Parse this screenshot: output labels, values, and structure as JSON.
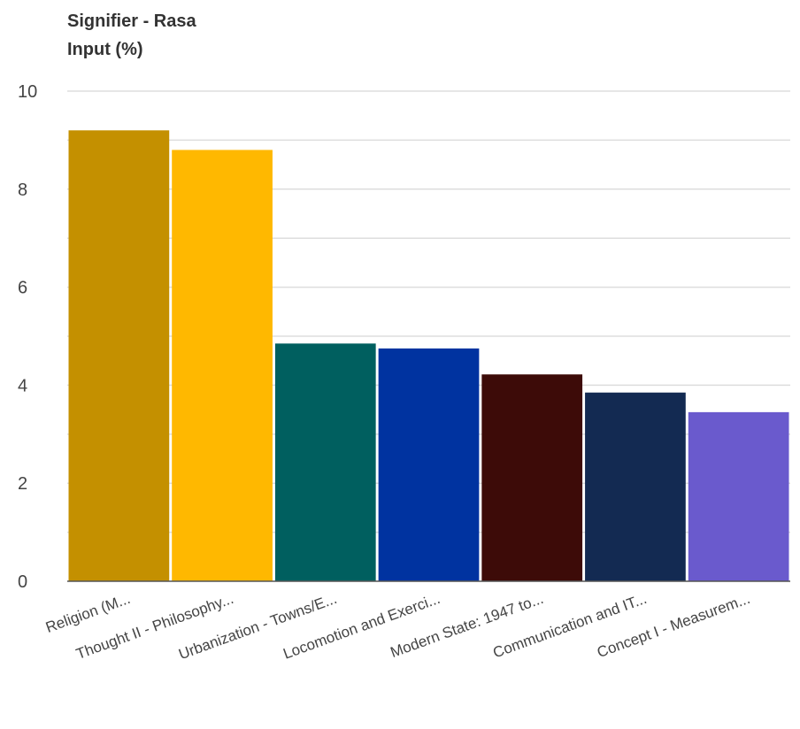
{
  "chart_data": {
    "type": "bar",
    "title_lines": [
      "Signifier - Rasa",
      "Input (%)"
    ],
    "categories": [
      "Religion (M...",
      "Thought II - Philosophy...",
      "Urbanization - Towns/E...",
      "Locomotion and Exerci...",
      "Modern State: 1947 to...",
      "Communication and IT...",
      "Concept I - Measurem..."
    ],
    "values": [
      9.2,
      8.8,
      4.85,
      4.75,
      4.22,
      3.85,
      3.45
    ],
    "colors": [
      "#c49000",
      "#ffb800",
      "#005f5f",
      "#0033a0",
      "#3d0b08",
      "#132a52",
      "#6a5acd"
    ],
    "ylim": [
      0,
      10
    ],
    "yticks": [
      "0",
      "2",
      "4",
      "6",
      "8",
      "10"
    ],
    "grid": true,
    "legend": "none"
  }
}
